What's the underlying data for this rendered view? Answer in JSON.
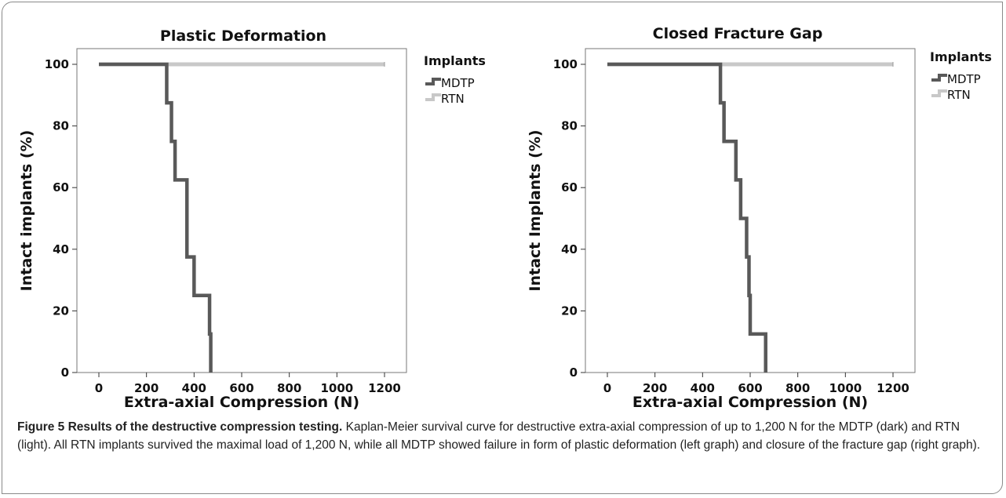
{
  "chart_data": [
    {
      "type": "line",
      "step": true,
      "title": "Plastic Deformation",
      "xlabel": "Extra-axial Compression (N)",
      "ylabel": "Intact implants (%)",
      "xlim": [
        0,
        1200
      ],
      "ylim": [
        0,
        100
      ],
      "xticks": [
        "0",
        "200",
        "400",
        "600",
        "800",
        "1000",
        "1200"
      ],
      "yticks": [
        "0",
        "20",
        "40",
        "60",
        "80",
        "100"
      ],
      "legend_title": "Implants",
      "legend_position": "right",
      "series": [
        {
          "name": "MDTP",
          "color": "#595959",
          "x": [
            0,
            285,
            305,
            320,
            370,
            400,
            465,
            470
          ],
          "y": [
            100,
            87.5,
            75,
            62.5,
            37.5,
            25,
            12.5,
            0
          ]
        },
        {
          "name": "RTN",
          "color": "#c8c8c8",
          "x": [
            0,
            1200
          ],
          "y": [
            100,
            100
          ]
        }
      ]
    },
    {
      "type": "line",
      "step": true,
      "title": "Closed Fracture Gap",
      "xlabel": "Extra-axial Compression (N)",
      "ylabel": "Intact Implants (%)",
      "xlim": [
        0,
        1200
      ],
      "ylim": [
        0,
        100
      ],
      "xticks": [
        "0",
        "200",
        "400",
        "600",
        "800",
        "1000",
        "1200"
      ],
      "yticks": [
        "0",
        "20",
        "40",
        "60",
        "80",
        "100"
      ],
      "legend_title": "Implants",
      "legend_position": "right",
      "series": [
        {
          "name": "MDTP",
          "color": "#595959",
          "x": [
            0,
            475,
            490,
            540,
            560,
            585,
            595,
            600,
            665
          ],
          "y": [
            100,
            87.5,
            75,
            62.5,
            50,
            37.5,
            25,
            12.5,
            0
          ]
        },
        {
          "name": "RTN",
          "color": "#c8c8c8",
          "x": [
            0,
            1200
          ],
          "y": [
            100,
            100
          ]
        }
      ]
    }
  ],
  "caption": {
    "label": "Figure 5",
    "title": "Results of the destructive compression testing.",
    "text": "Kaplan-Meier survival curve for destructive extra-axial compression of up to 1,200 N for the MDTP (dark) and RTN (light). All RTN implants survived the maximal load of 1,200 N, while all MDTP showed failure in form of plastic deformation (left graph) and closure of the fracture gap (right graph)."
  }
}
